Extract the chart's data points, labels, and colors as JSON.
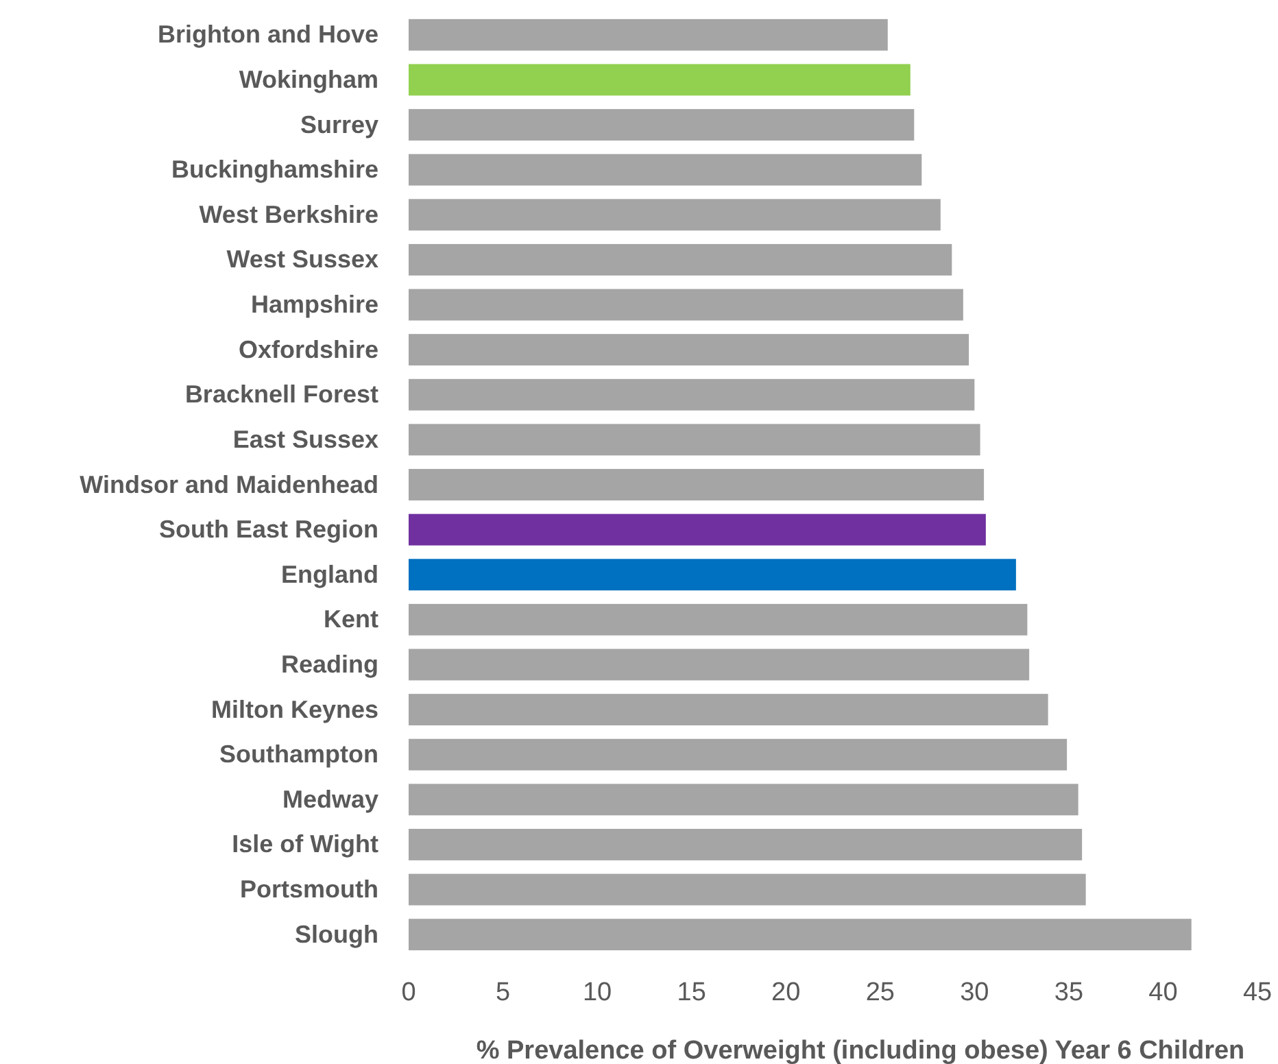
{
  "chart_data": {
    "type": "bar",
    "orientation": "horizontal",
    "xlabel": "% Prevalence of Overweight (including obese) Year 6 Children",
    "categories": [
      "Brighton and Hove",
      "Wokingham",
      "Surrey",
      "Buckinghamshire",
      "West Berkshire",
      "West Sussex",
      "Hampshire",
      "Oxfordshire",
      "Bracknell Forest",
      "East Sussex",
      "Windsor and Maidenhead",
      "South East Region",
      "England",
      "Kent",
      "Reading",
      "Milton Keynes",
      "Southampton",
      "Medway",
      "Isle of Wight",
      "Portsmouth",
      "Slough"
    ],
    "values": [
      25.4,
      26.6,
      26.8,
      27.2,
      28.2,
      28.8,
      29.4,
      29.7,
      30.0,
      30.3,
      30.5,
      30.6,
      32.2,
      32.8,
      32.9,
      33.9,
      34.9,
      35.5,
      35.7,
      35.9,
      41.5
    ],
    "colors": [
      "#a5a5a5",
      "#92d050",
      "#a5a5a5",
      "#a5a5a5",
      "#a5a5a5",
      "#a5a5a5",
      "#a5a5a5",
      "#a5a5a5",
      "#a5a5a5",
      "#a5a5a5",
      "#a5a5a5",
      "#7030a0",
      "#0070c0",
      "#a5a5a5",
      "#a5a5a5",
      "#a5a5a5",
      "#a5a5a5",
      "#a5a5a5",
      "#a5a5a5",
      "#a5a5a5",
      "#a5a5a5"
    ],
    "xlim": [
      0,
      45
    ],
    "xticks": [
      0,
      5,
      10,
      15,
      20,
      25,
      30,
      35,
      40,
      45
    ],
    "grid": false
  }
}
